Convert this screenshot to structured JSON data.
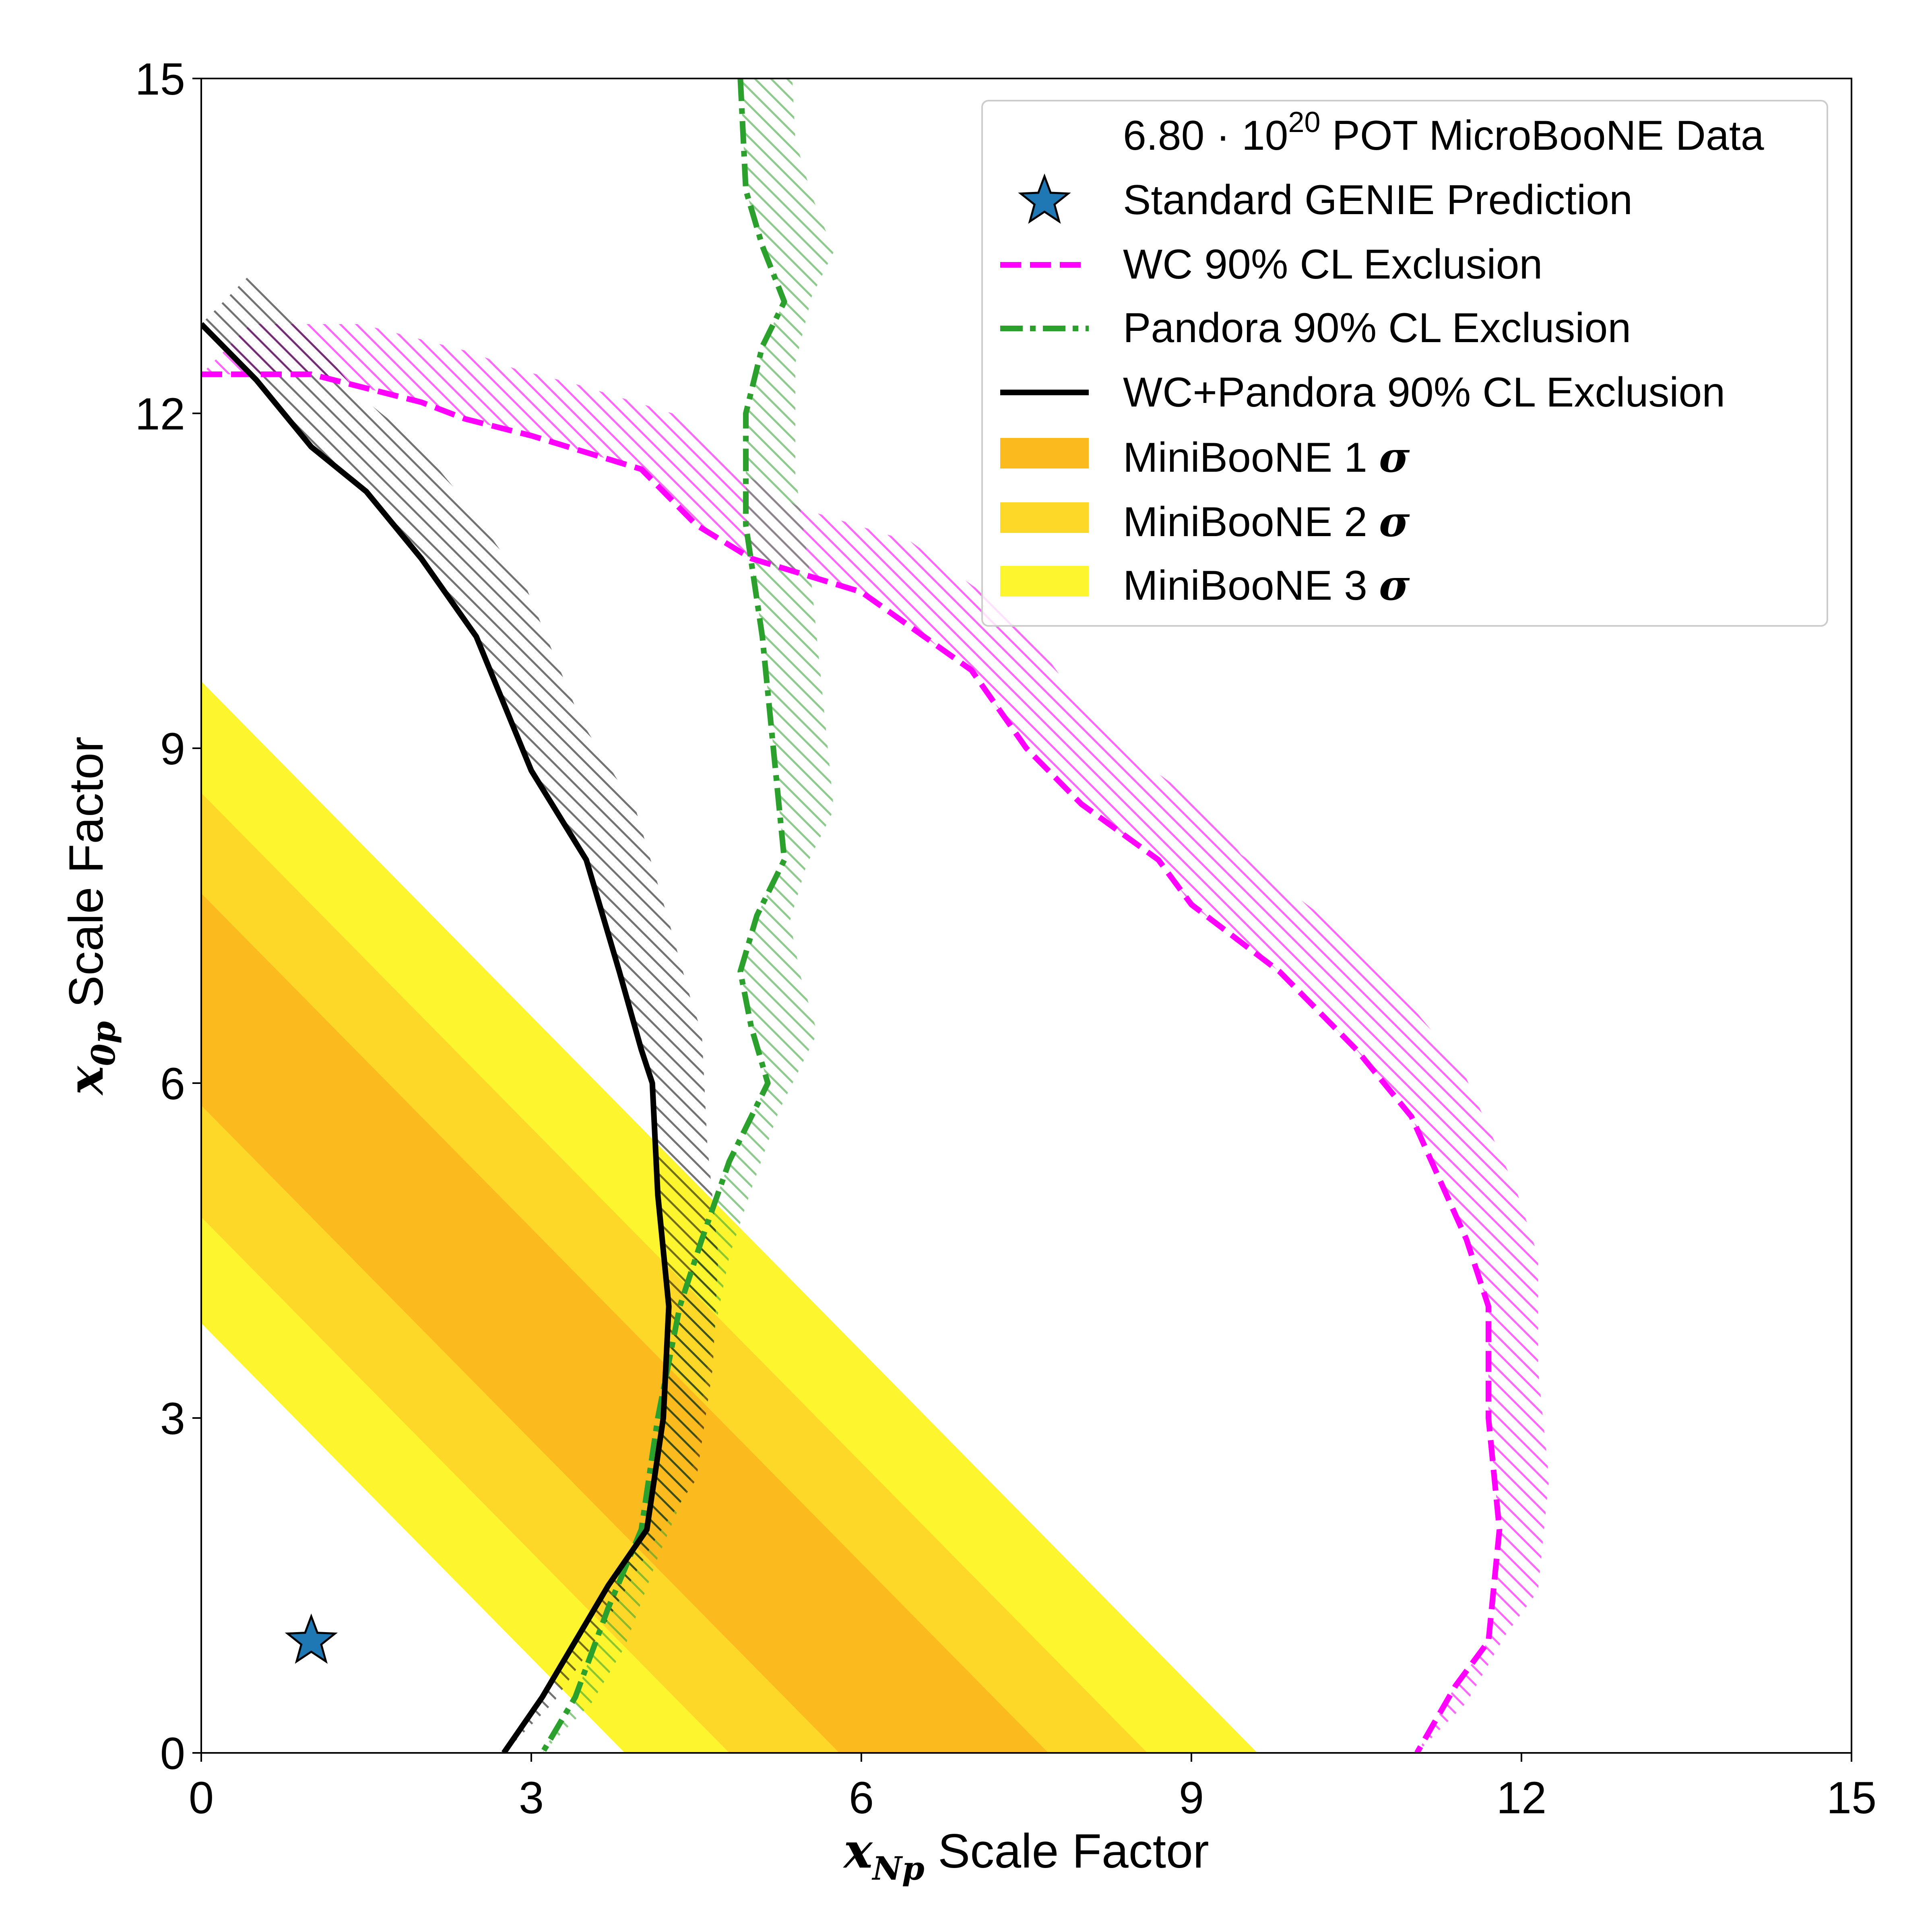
{
  "chart_data": {
    "type": "contour-exclusion",
    "xlabel": {
      "var": "x",
      "sub": "Np",
      "text": " Scale Factor"
    },
    "ylabel": {
      "var": "x",
      "sub": "0p",
      "text": " Scale Factor"
    },
    "xlim": [
      0,
      15
    ],
    "ylim": [
      0,
      15
    ],
    "xticks": [
      "0",
      "3",
      "6",
      "9",
      "12",
      "15"
    ],
    "yticks": [
      "0",
      "3",
      "6",
      "9",
      "12",
      "15"
    ],
    "legend_position": "upper-right",
    "colors": {
      "wc": "#ff00ff",
      "pandora": "#2ca02c",
      "combined": "#000000",
      "mb1": "#fbbb1e",
      "mb2": "#fdd828",
      "mb3": "#fdf52e",
      "star": "#1f77b4"
    },
    "legend": {
      "data": {
        "prefix": "6.80 · 10",
        "sup": "20",
        "suffix": " POT MicroBooNE Data"
      },
      "genie": "Standard GENIE Prediction",
      "wc": "WC 90% CL Exclusion",
      "pandora": "Pandora 90% CL Exclusion",
      "combined": "WC+Pandora 90% CL Exclusion",
      "mb1": {
        "text": "MiniBooNE 1 ",
        "sym": "σ"
      },
      "mb2": {
        "text": "MiniBooNE 2 ",
        "sym": "σ"
      },
      "mb3": {
        "text": "MiniBooNE 3 ",
        "sym": "σ"
      }
    },
    "genie_point": {
      "x": 1.0,
      "y": 1.0
    },
    "miniboone_bands": [
      {
        "name": "MiniBooNE 3 σ",
        "sum_range": [
          3.85,
          9.6
        ]
      },
      {
        "name": "MiniBooNE 2 σ",
        "sum_range": [
          4.8,
          8.6
        ]
      },
      {
        "name": "MiniBooNE 1 σ",
        "sum_range": [
          5.8,
          7.7
        ]
      }
    ],
    "series": [
      {
        "name": "WC 90% CL Exclusion",
        "style": "dashed",
        "points": [
          [
            0,
            12.35
          ],
          [
            0.5,
            12.35
          ],
          [
            1,
            12.35
          ],
          [
            2,
            12.1
          ],
          [
            2.4,
            11.95
          ],
          [
            3,
            11.8
          ],
          [
            4,
            11.5
          ],
          [
            4.5,
            11.0
          ],
          [
            5,
            10.7
          ],
          [
            6,
            10.4
          ],
          [
            7,
            9.7
          ],
          [
            7.5,
            9.0
          ],
          [
            8,
            8.5
          ],
          [
            8.7,
            8.0
          ],
          [
            9,
            7.6
          ],
          [
            9.8,
            7.0
          ],
          [
            10.5,
            6.3
          ],
          [
            11,
            5.7
          ],
          [
            11.5,
            4.6
          ],
          [
            11.7,
            4.0
          ],
          [
            11.7,
            3.0
          ],
          [
            11.8,
            2.0
          ],
          [
            11.7,
            1.0
          ],
          [
            11.4,
            0.6
          ],
          [
            11.05,
            0
          ]
        ]
      },
      {
        "name": "Pandora 90% CL Exclusion",
        "style": "dashdot",
        "points": [
          [
            4.9,
            15
          ],
          [
            4.95,
            14
          ],
          [
            5.1,
            13.5
          ],
          [
            5.3,
            13.0
          ],
          [
            5.1,
            12.6
          ],
          [
            4.95,
            12.0
          ],
          [
            4.95,
            11.0
          ],
          [
            5.1,
            10.0
          ],
          [
            5.2,
            9.0
          ],
          [
            5.25,
            8.5
          ],
          [
            5.3,
            8.0
          ],
          [
            5.05,
            7.5
          ],
          [
            4.9,
            7.0
          ],
          [
            5.0,
            6.5
          ],
          [
            5.15,
            6.0
          ],
          [
            4.8,
            5.3
          ],
          [
            4.55,
            4.6
          ],
          [
            4.35,
            4.0
          ],
          [
            4.15,
            3.0
          ],
          [
            4.0,
            2.0
          ],
          [
            3.7,
            1.3
          ],
          [
            3.4,
            0.5
          ],
          [
            3.1,
            0
          ]
        ]
      },
      {
        "name": "WC+Pandora 90% CL Exclusion",
        "style": "solid",
        "points": [
          [
            0,
            12.8
          ],
          [
            0.5,
            12.3
          ],
          [
            1,
            11.7
          ],
          [
            1.5,
            11.3
          ],
          [
            2,
            10.7
          ],
          [
            2.5,
            10.0
          ],
          [
            3,
            8.8
          ],
          [
            3.5,
            8.0
          ],
          [
            3.8,
            7.0
          ],
          [
            4.0,
            6.3
          ],
          [
            4.1,
            6.0
          ],
          [
            4.15,
            5.0
          ],
          [
            4.25,
            4.0
          ],
          [
            4.2,
            3.0
          ],
          [
            4.05,
            2.0
          ],
          [
            3.7,
            1.5
          ],
          [
            3.1,
            0.5
          ],
          [
            2.75,
            0
          ]
        ]
      }
    ]
  }
}
